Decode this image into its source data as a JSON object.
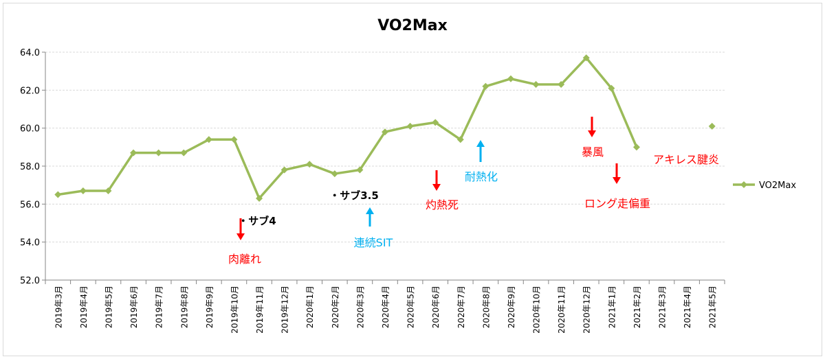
{
  "chart_data": {
    "type": "line",
    "title": "VO2Max",
    "xlabel": "",
    "ylabel": "",
    "ylim": [
      52.0,
      64.0
    ],
    "yticks": [
      "52.0",
      "54.0",
      "56.0",
      "58.0",
      "60.0",
      "62.0",
      "64.0"
    ],
    "grid": true,
    "legend_position": "right",
    "colors": {
      "series": "#9bbb59",
      "up_arrow": "#00b0f0",
      "down_arrow": "#ff0000"
    },
    "categories": [
      "2019年3月",
      "2019年4月",
      "2019年5月",
      "2019年6月",
      "2019年7月",
      "2019年8月",
      "2019年9月",
      "2019年10月",
      "2019年11月",
      "2019年12月",
      "2020年1月",
      "2020年2月",
      "2020年3月",
      "2020年4月",
      "2020年5月",
      "2020年6月",
      "2020年7月",
      "2020年8月",
      "2020年9月",
      "2020年10月",
      "2020年11月",
      "2020年12月",
      "2021年1月",
      "2021年2月",
      "2021年3月",
      "2021年4月",
      "2021年5月"
    ],
    "series": [
      {
        "name": "VO2Max",
        "values": [
          56.5,
          56.7,
          56.7,
          58.7,
          58.7,
          58.7,
          59.4,
          59.4,
          56.3,
          57.8,
          58.1,
          57.6,
          57.8,
          59.8,
          60.1,
          60.3,
          59.4,
          62.2,
          62.6,
          62.3,
          62.3,
          63.7,
          62.1,
          59.0,
          null,
          null,
          60.1
        ]
      }
    ],
    "annotations": [
      {
        "text": "肉離れ",
        "color": "red",
        "arrow": "down",
        "category": "2019年10月"
      },
      {
        "text": "・サブ4",
        "color": "black",
        "category": "2019年11月"
      },
      {
        "text": "連続SIT",
        "color": "blue",
        "arrow": "up",
        "category": "2020年3月"
      },
      {
        "text": "・サブ3.5",
        "color": "black",
        "category": "2020年3月"
      },
      {
        "text": "灼熱死",
        "color": "red",
        "arrow": "down",
        "category": "2020年6月"
      },
      {
        "text": "耐熱化",
        "color": "blue",
        "arrow": "up",
        "category": "2020年8月"
      },
      {
        "text": "暴風",
        "color": "red",
        "arrow": "down",
        "category": "2020年12月"
      },
      {
        "text": "ロング走偏重",
        "color": "red",
        "arrow": "down",
        "category": "2021年1月"
      },
      {
        "text": "アキレス腱炎",
        "color": "red",
        "category": "2021年4月"
      }
    ]
  }
}
